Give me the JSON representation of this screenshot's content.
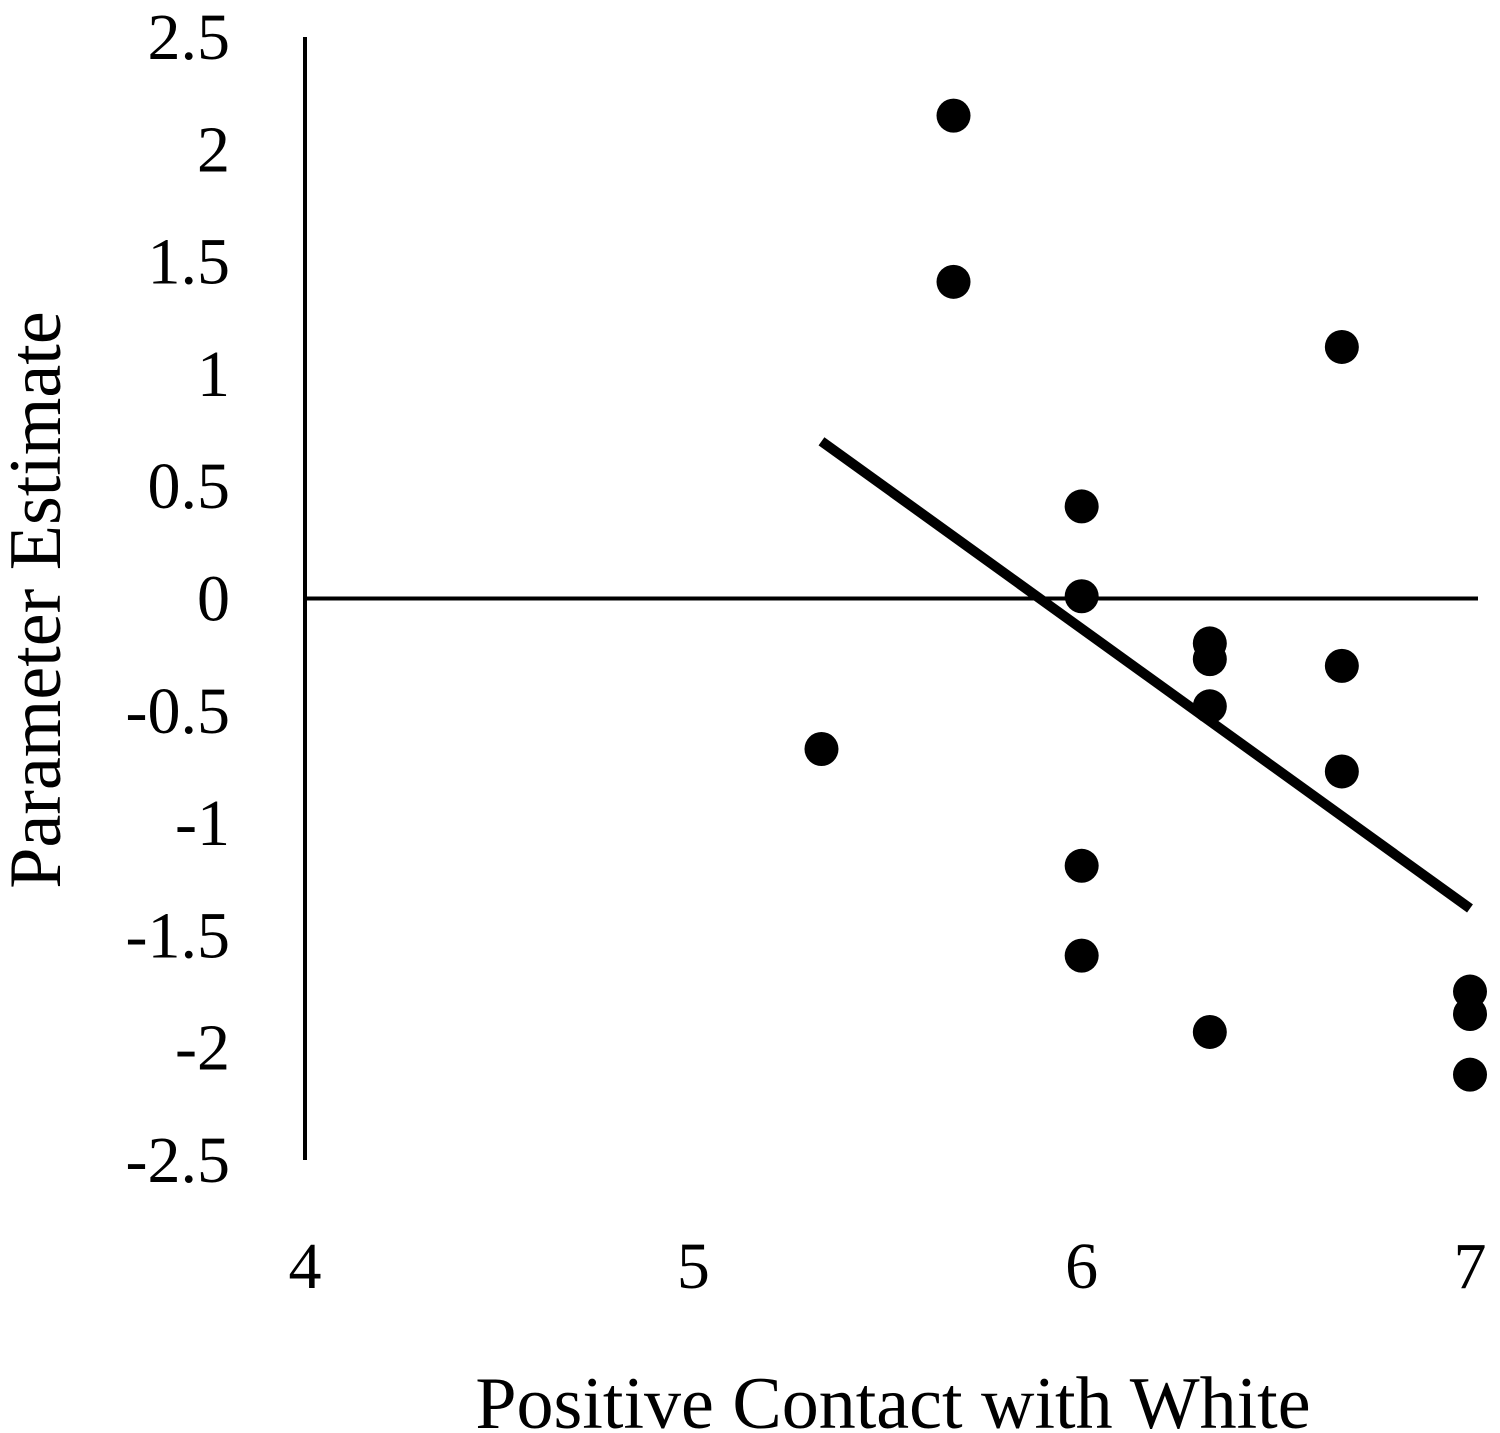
{
  "chart_data": {
    "type": "scatter",
    "xlabel": "Positive Contact with White",
    "ylabel": "Parameter Estimate",
    "xlim": [
      4,
      7
    ],
    "ylim": [
      -2.5,
      2.5
    ],
    "x_ticks": [
      "4",
      "5",
      "6",
      "7"
    ],
    "y_ticks": [
      "2.5",
      "2",
      "1.5",
      "1",
      "0.5",
      "0",
      "-0.5",
      "-1",
      "-1.5",
      "-2",
      "-2.5"
    ],
    "grid": false,
    "legend": "none",
    "marker_color": "#000000",
    "series": [
      {
        "points": [
          {
            "x": 5.33,
            "y": -0.67
          },
          {
            "x": 5.67,
            "y": 2.15
          },
          {
            "x": 5.67,
            "y": 1.41
          },
          {
            "x": 6.0,
            "y": 0.41
          },
          {
            "x": 6.0,
            "y": 0.01
          },
          {
            "x": 6.0,
            "y": -1.19
          },
          {
            "x": 6.0,
            "y": -1.59
          },
          {
            "x": 6.33,
            "y": -0.2
          },
          {
            "x": 6.33,
            "y": -0.27
          },
          {
            "x": 6.33,
            "y": -0.48
          },
          {
            "x": 6.33,
            "y": -1.93
          },
          {
            "x": 6.67,
            "y": 1.12
          },
          {
            "x": 6.67,
            "y": -0.3
          },
          {
            "x": 6.67,
            "y": -0.77
          },
          {
            "x": 7.0,
            "y": -1.75
          },
          {
            "x": 7.0,
            "y": -1.85
          },
          {
            "x": 7.0,
            "y": -2.12
          }
        ]
      }
    ],
    "trendline": {
      "x": [
        5.33,
        7.0
      ],
      "y": [
        0.7,
        -1.38
      ]
    }
  }
}
